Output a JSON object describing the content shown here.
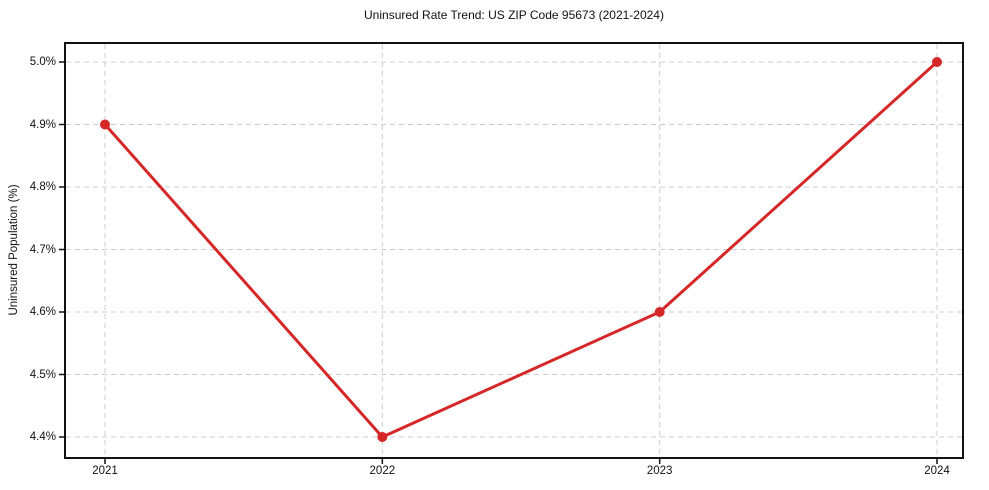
{
  "chart_data": {
    "type": "line",
    "title": "Uninsured Rate Trend: US ZIP Code 95673 (2021-2024)",
    "xlabel": "",
    "ylabel": "Uninsured Population (%)",
    "categories": [
      "2021",
      "2022",
      "2023",
      "2024"
    ],
    "values": [
      4.9,
      4.4,
      4.6,
      5.0
    ],
    "ylim": [
      4.4,
      5.0
    ],
    "yticks": [
      4.4,
      4.5,
      4.6,
      4.7,
      4.8,
      4.9,
      5.0
    ],
    "ytick_labels": [
      "4.4%",
      "4.5%",
      "4.6%",
      "4.7%",
      "4.8%",
      "4.9%",
      "5.0%"
    ],
    "grid": true,
    "legend": false,
    "line_color": "#d62728",
    "marker": "circle",
    "grid_color": "#cccccc",
    "axis_color": "#111111"
  }
}
